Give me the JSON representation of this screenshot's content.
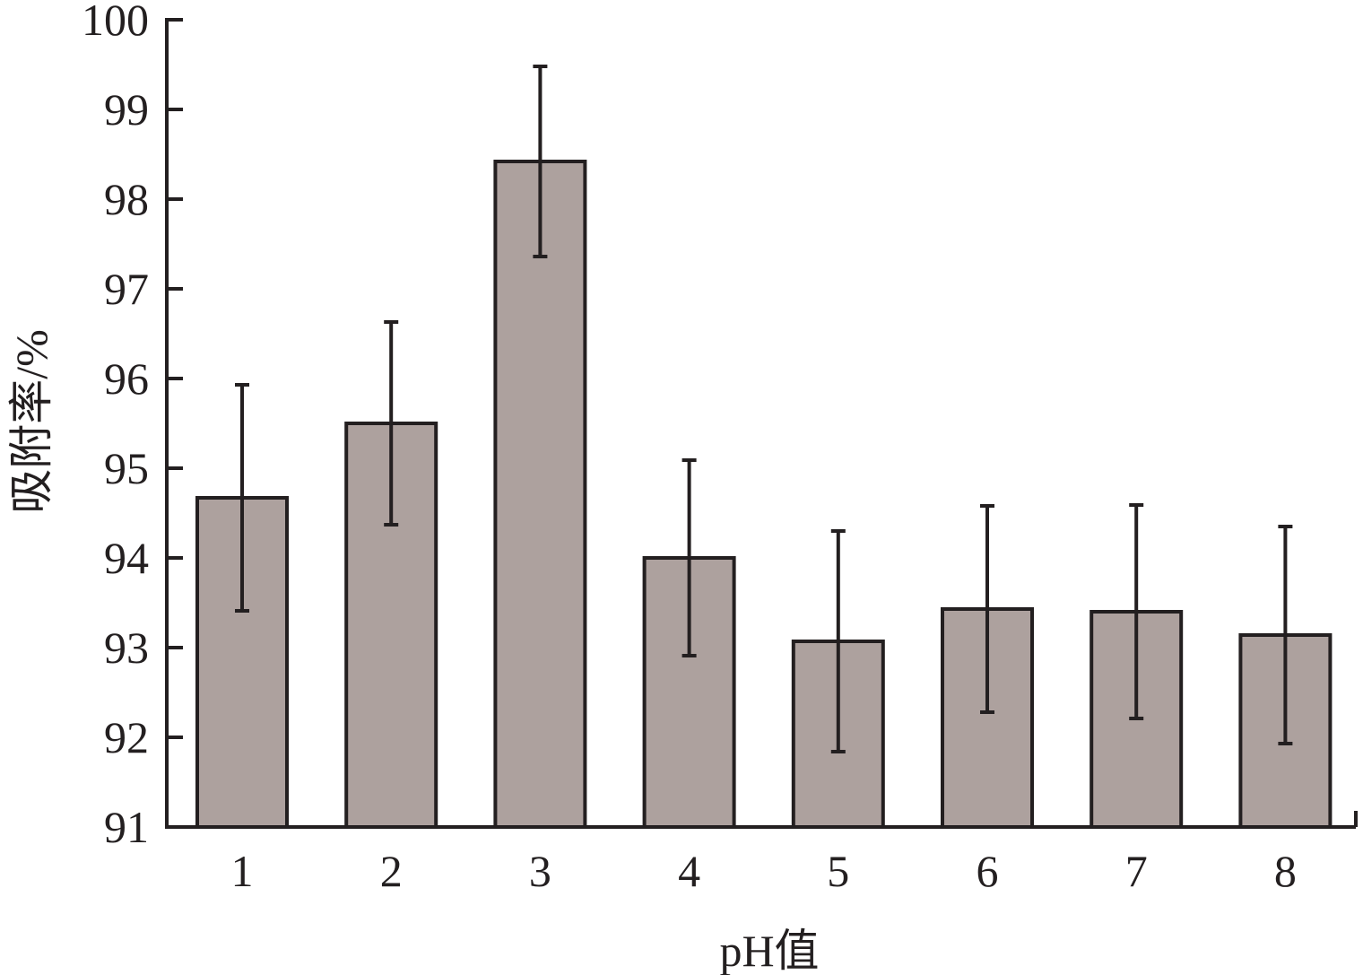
{
  "chart_data": {
    "type": "bar",
    "categories": [
      "1",
      "2",
      "3",
      "4",
      "5",
      "6",
      "7",
      "8"
    ],
    "values": [
      94.67,
      95.5,
      98.42,
      94.0,
      93.07,
      93.43,
      93.4,
      93.14
    ],
    "error": [
      1.26,
      1.13,
      1.06,
      1.09,
      1.23,
      1.15,
      1.19,
      1.21
    ],
    "xlabel": "pH值",
    "ylabel": "吸附率/%",
    "ylim": [
      91,
      100
    ],
    "yticks": [
      91,
      92,
      93,
      94,
      95,
      96,
      97,
      98,
      99,
      100
    ],
    "grid": false,
    "legend": "none",
    "colors": {
      "bar_fill": "#ada19e",
      "stroke": "#231f20"
    }
  }
}
